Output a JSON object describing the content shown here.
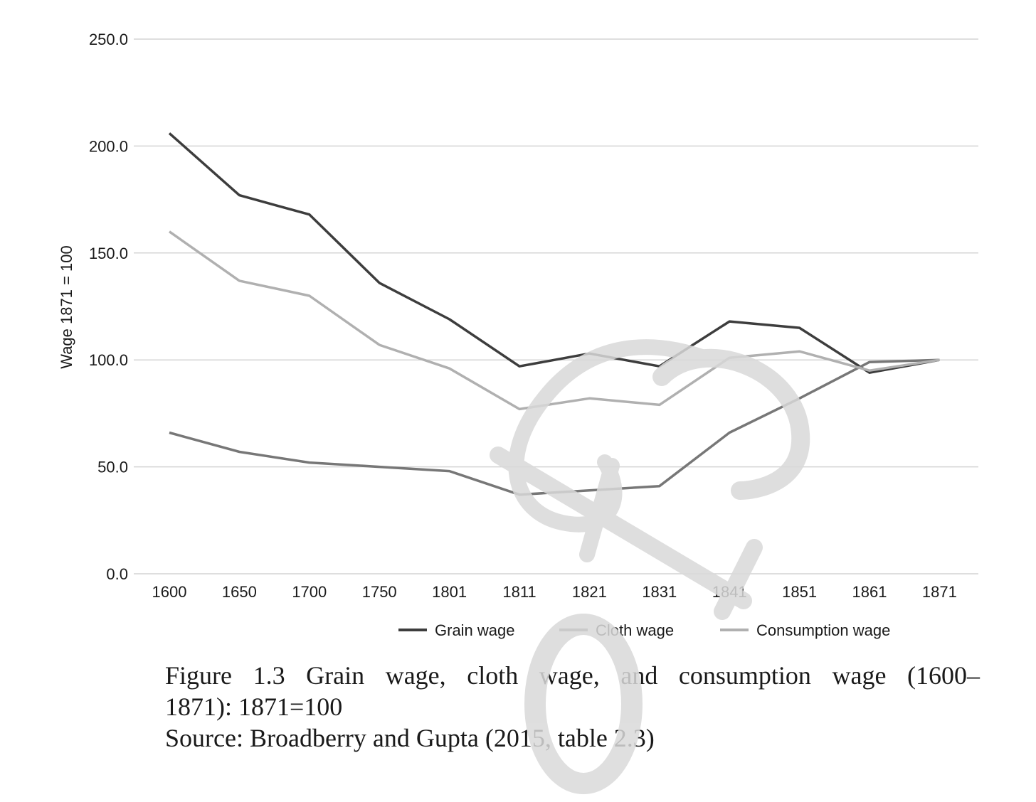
{
  "chart_data": {
    "type": "line",
    "title": "",
    "xlabel": "",
    "ylabel": "Wage 1871 = 100",
    "categories": [
      "1600",
      "1650",
      "1700",
      "1750",
      "1801",
      "1811",
      "1821",
      "1831",
      "1841",
      "1851",
      "1861",
      "1871"
    ],
    "ylim": [
      0,
      250
    ],
    "yticks": [
      0,
      50,
      100,
      150,
      200,
      250
    ],
    "ytick_labels": [
      "0.0",
      "50.0",
      "100.0",
      "150.0",
      "200.0",
      "250.0"
    ],
    "grid": true,
    "legend_position": "bottom",
    "series": [
      {
        "name": "Grain wage",
        "color": "#3d3d3d",
        "values": [
          206,
          177,
          168,
          136,
          119,
          97,
          103,
          97,
          118,
          115,
          94,
          100
        ]
      },
      {
        "name": "Cloth wage",
        "color": "#777777",
        "values": [
          66,
          57,
          52,
          50,
          48,
          37,
          39,
          41,
          66,
          82,
          99,
          100
        ]
      },
      {
        "name": "Consumption wage",
        "color": "#b0b0b0",
        "values": [
          160,
          137,
          130,
          107,
          96,
          77,
          82,
          79,
          101,
          104,
          95,
          100
        ]
      }
    ]
  },
  "caption": {
    "line1": "Figure 1.3 Grain wage, cloth wage, and consumption wage (1600–",
    "line2": "1871): 1871=100",
    "line3": "Source: Broadberry and Gupta (2015, table 2.3)"
  },
  "watermark": {
    "glyph": "&",
    "color": "#d9d9d9"
  }
}
